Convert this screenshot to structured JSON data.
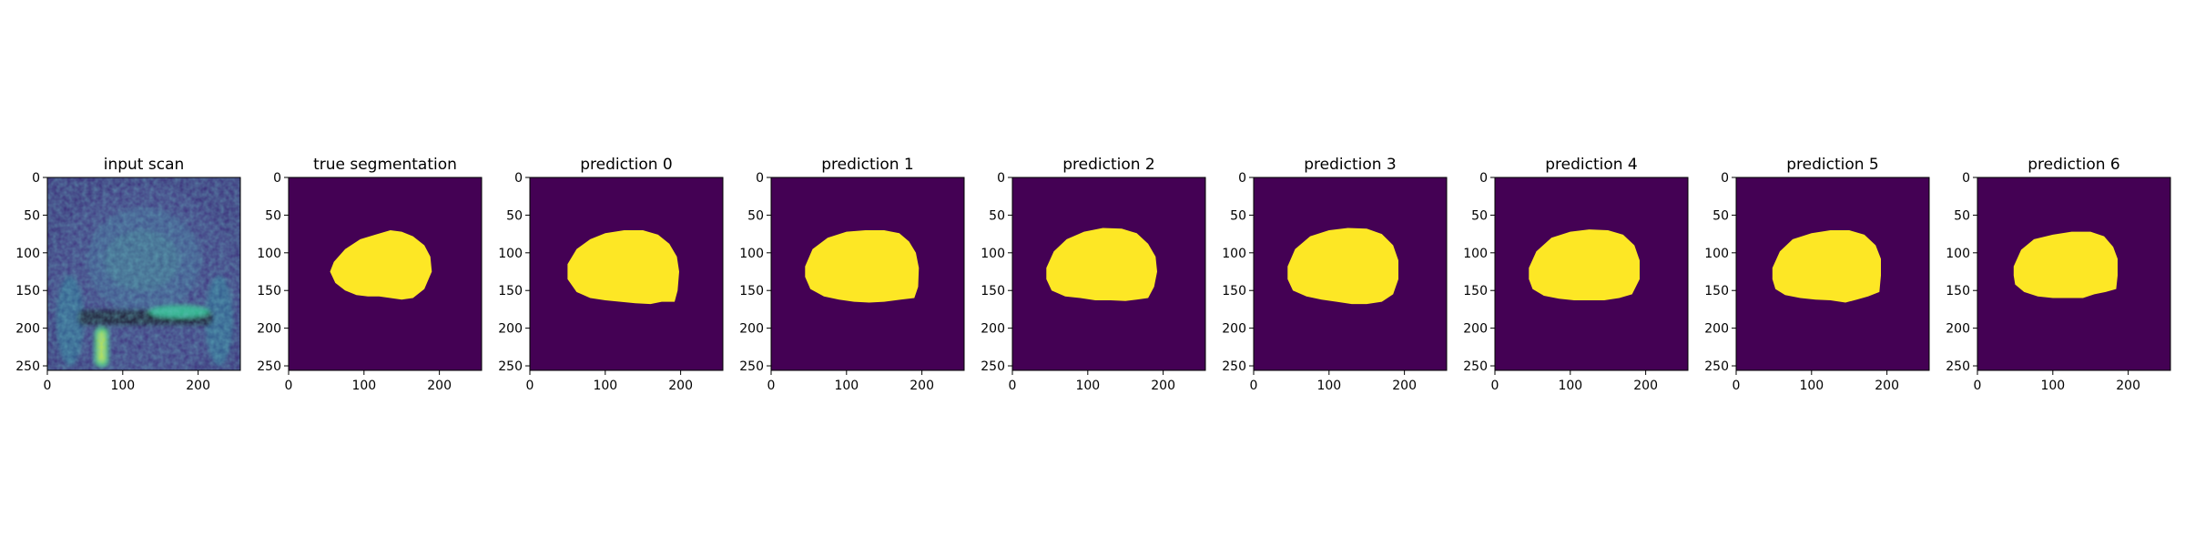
{
  "figure": {
    "background": "#ffffff",
    "colormap": "viridis",
    "colors": {
      "background_class": "#440154",
      "foreground_class": "#fde725"
    }
  },
  "chart_data": [
    {
      "type": "heatmap",
      "id": "input-scan",
      "title": "input scan",
      "content": "mri",
      "xlim": [
        0,
        256
      ],
      "ylim": [
        256,
        0
      ],
      "xticks": [
        "0",
        "100",
        "200"
      ],
      "yticks": [
        "0",
        "50",
        "100",
        "150",
        "200",
        "250"
      ]
    },
    {
      "type": "heatmap",
      "id": "true-segmentation",
      "title": "true segmentation",
      "content": "mask",
      "xlim": [
        0,
        256
      ],
      "ylim": [
        256,
        0
      ],
      "xticks": [
        "0",
        "100",
        "200"
      ],
      "yticks": [
        "0",
        "50",
        "100",
        "150",
        "200",
        "250"
      ],
      "mask_outline": [
        [
          60,
          112
        ],
        [
          75,
          95
        ],
        [
          95,
          82
        ],
        [
          115,
          76
        ],
        [
          135,
          70
        ],
        [
          150,
          72
        ],
        [
          165,
          78
        ],
        [
          180,
          90
        ],
        [
          188,
          105
        ],
        [
          190,
          125
        ],
        [
          180,
          148
        ],
        [
          165,
          160
        ],
        [
          150,
          162
        ],
        [
          135,
          160
        ],
        [
          120,
          158
        ],
        [
          105,
          158
        ],
        [
          90,
          156
        ],
        [
          75,
          150
        ],
        [
          62,
          140
        ],
        [
          55,
          125
        ]
      ]
    },
    {
      "type": "heatmap",
      "id": "prediction-0",
      "title": "prediction 0",
      "content": "mask",
      "xlim": [
        0,
        256
      ],
      "ylim": [
        256,
        0
      ],
      "xticks": [
        "0",
        "100",
        "200"
      ],
      "yticks": [
        "0",
        "50",
        "100",
        "150",
        "200",
        "250"
      ],
      "mask_outline": [
        [
          50,
          115
        ],
        [
          62,
          95
        ],
        [
          80,
          82
        ],
        [
          100,
          74
        ],
        [
          125,
          70
        ],
        [
          150,
          70
        ],
        [
          170,
          76
        ],
        [
          185,
          88
        ],
        [
          195,
          105
        ],
        [
          198,
          125
        ],
        [
          196,
          150
        ],
        [
          192,
          165
        ],
        [
          175,
          165
        ],
        [
          160,
          168
        ],
        [
          140,
          167
        ],
        [
          120,
          165
        ],
        [
          100,
          163
        ],
        [
          80,
          160
        ],
        [
          62,
          152
        ],
        [
          50,
          135
        ]
      ]
    },
    {
      "type": "heatmap",
      "id": "prediction-1",
      "title": "prediction 1",
      "content": "mask",
      "xlim": [
        0,
        256
      ],
      "ylim": [
        256,
        0
      ],
      "xticks": [
        "0",
        "100",
        "200"
      ],
      "yticks": [
        "0",
        "50",
        "100",
        "150",
        "200",
        "250"
      ],
      "mask_outline": [
        [
          45,
          118
        ],
        [
          55,
          95
        ],
        [
          75,
          80
        ],
        [
          100,
          72
        ],
        [
          125,
          70
        ],
        [
          150,
          70
        ],
        [
          170,
          74
        ],
        [
          183,
          85
        ],
        [
          192,
          100
        ],
        [
          196,
          120
        ],
        [
          195,
          145
        ],
        [
          190,
          160
        ],
        [
          172,
          162
        ],
        [
          150,
          165
        ],
        [
          130,
          166
        ],
        [
          110,
          165
        ],
        [
          90,
          162
        ],
        [
          70,
          158
        ],
        [
          52,
          148
        ],
        [
          45,
          132
        ]
      ]
    },
    {
      "type": "heatmap",
      "id": "prediction-2",
      "title": "prediction 2",
      "content": "mask",
      "xlim": [
        0,
        256
      ],
      "ylim": [
        256,
        0
      ],
      "xticks": [
        "0",
        "100",
        "200"
      ],
      "yticks": [
        "0",
        "50",
        "100",
        "150",
        "200",
        "250"
      ],
      "mask_outline": [
        [
          45,
          120
        ],
        [
          55,
          98
        ],
        [
          72,
          82
        ],
        [
          95,
          72
        ],
        [
          120,
          67
        ],
        [
          145,
          68
        ],
        [
          165,
          74
        ],
        [
          180,
          88
        ],
        [
          190,
          105
        ],
        [
          192,
          125
        ],
        [
          188,
          145
        ],
        [
          180,
          160
        ],
        [
          165,
          162
        ],
        [
          150,
          164
        ],
        [
          130,
          163
        ],
        [
          110,
          163
        ],
        [
          90,
          160
        ],
        [
          70,
          158
        ],
        [
          52,
          150
        ],
        [
          45,
          135
        ]
      ]
    },
    {
      "type": "heatmap",
      "id": "prediction-3",
      "title": "prediction 3",
      "content": "mask",
      "xlim": [
        0,
        256
      ],
      "ylim": [
        256,
        0
      ],
      "xticks": [
        "0",
        "100",
        "200"
      ],
      "yticks": [
        "0",
        "50",
        "100",
        "150",
        "200",
        "250"
      ],
      "mask_outline": [
        [
          45,
          118
        ],
        [
          55,
          95
        ],
        [
          75,
          78
        ],
        [
          100,
          70
        ],
        [
          125,
          67
        ],
        [
          150,
          68
        ],
        [
          170,
          75
        ],
        [
          185,
          90
        ],
        [
          192,
          110
        ],
        [
          192,
          135
        ],
        [
          185,
          155
        ],
        [
          170,
          165
        ],
        [
          150,
          168
        ],
        [
          130,
          168
        ],
        [
          110,
          165
        ],
        [
          90,
          162
        ],
        [
          70,
          158
        ],
        [
          52,
          150
        ],
        [
          45,
          135
        ]
      ]
    },
    {
      "type": "heatmap",
      "id": "prediction-4",
      "title": "prediction 4",
      "content": "mask",
      "xlim": [
        0,
        256
      ],
      "ylim": [
        256,
        0
      ],
      "xticks": [
        "0",
        "100",
        "200"
      ],
      "yticks": [
        "0",
        "50",
        "100",
        "150",
        "200",
        "250"
      ],
      "mask_outline": [
        [
          45,
          120
        ],
        [
          55,
          98
        ],
        [
          75,
          80
        ],
        [
          100,
          72
        ],
        [
          125,
          69
        ],
        [
          150,
          70
        ],
        [
          170,
          76
        ],
        [
          185,
          90
        ],
        [
          192,
          110
        ],
        [
          192,
          135
        ],
        [
          182,
          155
        ],
        [
          165,
          160
        ],
        [
          145,
          163
        ],
        [
          125,
          163
        ],
        [
          105,
          163
        ],
        [
          85,
          161
        ],
        [
          65,
          157
        ],
        [
          50,
          148
        ],
        [
          45,
          135
        ]
      ]
    },
    {
      "type": "heatmap",
      "id": "prediction-5",
      "title": "prediction 5",
      "content": "mask",
      "xlim": [
        0,
        256
      ],
      "ylim": [
        256,
        0
      ],
      "xticks": [
        "0",
        "100",
        "200"
      ],
      "yticks": [
        "0",
        "50",
        "100",
        "150",
        "200",
        "250"
      ],
      "mask_outline": [
        [
          48,
          120
        ],
        [
          58,
          98
        ],
        [
          75,
          82
        ],
        [
          100,
          74
        ],
        [
          125,
          70
        ],
        [
          150,
          70
        ],
        [
          170,
          76
        ],
        [
          185,
          90
        ],
        [
          192,
          108
        ],
        [
          192,
          130
        ],
        [
          190,
          152
        ],
        [
          175,
          158
        ],
        [
          160,
          162
        ],
        [
          145,
          166
        ],
        [
          125,
          163
        ],
        [
          105,
          162
        ],
        [
          85,
          160
        ],
        [
          65,
          156
        ],
        [
          52,
          148
        ],
        [
          48,
          135
        ]
      ]
    },
    {
      "type": "heatmap",
      "id": "prediction-6",
      "title": "prediction 6",
      "content": "mask",
      "xlim": [
        0,
        256
      ],
      "ylim": [
        256,
        0
      ],
      "xticks": [
        "0",
        "100",
        "200"
      ],
      "yticks": [
        "0",
        "50",
        "100",
        "150",
        "200",
        "250"
      ],
      "mask_outline": [
        [
          48,
          118
        ],
        [
          58,
          96
        ],
        [
          75,
          82
        ],
        [
          100,
          76
        ],
        [
          125,
          72
        ],
        [
          150,
          72
        ],
        [
          168,
          78
        ],
        [
          180,
          92
        ],
        [
          186,
          108
        ],
        [
          186,
          130
        ],
        [
          184,
          148
        ],
        [
          170,
          152
        ],
        [
          155,
          155
        ],
        [
          140,
          160
        ],
        [
          120,
          160
        ],
        [
          100,
          160
        ],
        [
          80,
          158
        ],
        [
          62,
          152
        ],
        [
          50,
          142
        ],
        [
          48,
          130
        ]
      ]
    }
  ]
}
